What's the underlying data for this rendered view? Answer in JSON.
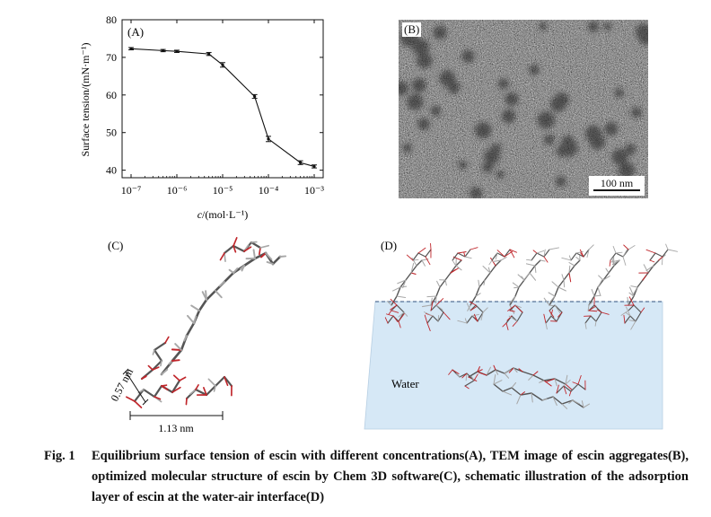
{
  "panels": {
    "a": {
      "label": "(A)"
    },
    "b": {
      "label": "(B)",
      "scale_bar": "100 nm"
    },
    "c": {
      "label": "(C)",
      "dim_vertical": "0.57 nm",
      "dim_horizontal": "1.13 nm"
    },
    "d": {
      "label": "(D)",
      "water_label": "Water"
    }
  },
  "chart_data": {
    "type": "line",
    "xscale": "log",
    "xlabel_italic": "c",
    "xlabel_rest": "/(mol·L⁻¹)",
    "ylabel": "Surface tension/(mN·m⁻¹)",
    "xlim": [
      1e-07,
      0.001
    ],
    "ylim": [
      38,
      80
    ],
    "xticks": [
      1e-07,
      1e-06,
      1e-05,
      0.0001,
      0.001
    ],
    "xtick_labels": [
      "10⁻⁷",
      "10⁻⁶",
      "10⁻⁵",
      "10⁻⁴",
      "10⁻³"
    ],
    "yticks": [
      40,
      50,
      60,
      70,
      80
    ],
    "x": [
      1e-07,
      5e-07,
      1e-06,
      5e-06,
      1e-05,
      5e-05,
      0.0001,
      0.0005,
      0.001
    ],
    "y": [
      72.3,
      71.8,
      71.6,
      70.9,
      68.0,
      59.6,
      48.3,
      42.0,
      41.0
    ],
    "error": [
      0.3,
      0.3,
      0.3,
      0.4,
      0.6,
      0.5,
      0.7,
      0.5,
      0.4
    ]
  },
  "caption": {
    "fig_label": "Fig. 1",
    "text": "Equilibrium surface tension of escin with different concentrations(A), TEM image of escin aggregates(B), optimized molecular structure of escin by Chem 3D software(C), schematic illustration of the adsorption layer of escin at the water-air interface(D)"
  }
}
